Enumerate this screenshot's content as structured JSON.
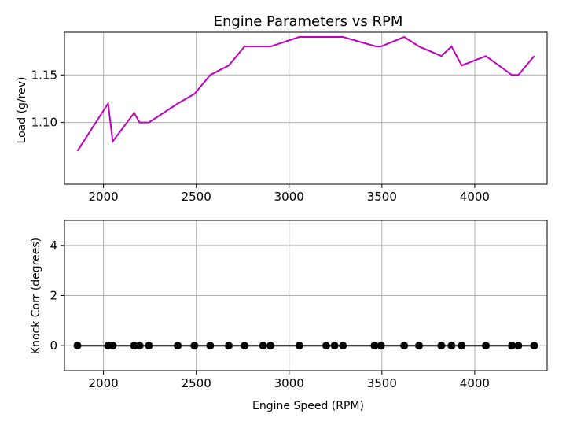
{
  "chart_data": [
    {
      "type": "line",
      "title": "Engine Parameters vs RPM",
      "xlabel": "",
      "ylabel": "Load (g/rev)",
      "xlim": [
        1790,
        4390
      ],
      "ylim": [
        1.035,
        1.195
      ],
      "xticks": [
        2000,
        2500,
        3000,
        3500,
        4000
      ],
      "yticks": [
        1.1,
        1.15
      ],
      "ytick_labels": [
        "1.10",
        "1.15"
      ],
      "grid": true,
      "series": [
        {
          "color": "#bf00bf",
          "x": [
            1860,
            2025,
            2050,
            2165,
            2195,
            2245,
            2400,
            2490,
            2575,
            2675,
            2760,
            2900,
            3055,
            3290,
            3470,
            3495,
            3620,
            3700,
            3820,
            3875,
            3930,
            4060,
            4200,
            4235,
            4320
          ],
          "y": [
            1.07,
            1.12,
            1.08,
            1.11,
            1.1,
            1.1,
            1.12,
            1.13,
            1.15,
            1.16,
            1.18,
            1.18,
            1.19,
            1.19,
            1.18,
            1.18,
            1.19,
            1.18,
            1.17,
            1.18,
            1.16,
            1.17,
            1.15,
            1.15,
            1.17
          ]
        }
      ]
    },
    {
      "type": "line",
      "title": "",
      "xlabel": "Engine Speed (RPM)",
      "ylabel": "Knock Corr (degrees)",
      "xlim": [
        1790,
        4390
      ],
      "ylim": [
        -1,
        5
      ],
      "xticks": [
        2000,
        2500,
        3000,
        3500,
        4000
      ],
      "yticks": [
        0,
        2,
        4
      ],
      "ytick_labels": [
        "0",
        "2",
        "4"
      ],
      "grid": true,
      "series": [
        {
          "color": "#000000",
          "marker": "circle",
          "x": [
            1860,
            2025,
            2050,
            2165,
            2195,
            2245,
            2400,
            2490,
            2575,
            2675,
            2760,
            2860,
            2900,
            3055,
            3200,
            3245,
            3290,
            3460,
            3495,
            3620,
            3700,
            3820,
            3875,
            3930,
            4060,
            4200,
            4235,
            4320
          ],
          "y": [
            0,
            0,
            0,
            0,
            0,
            0,
            0,
            0,
            0,
            0,
            0,
            0,
            0,
            0,
            0,
            0,
            0,
            0,
            0,
            0,
            0,
            0,
            0,
            0,
            0,
            0,
            0,
            0
          ]
        }
      ]
    }
  ]
}
